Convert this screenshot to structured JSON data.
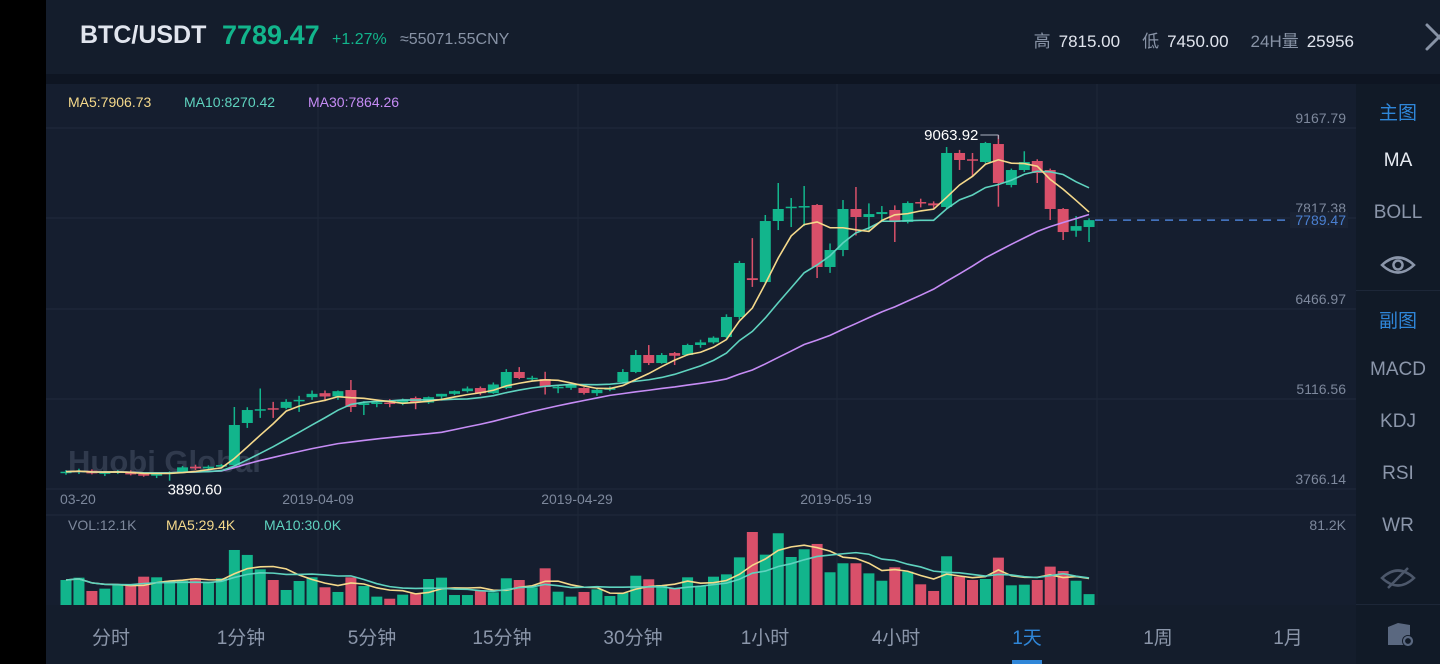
{
  "header": {
    "pair": "BTC/USDT",
    "price": "7789.47",
    "change": "+1.27%",
    "cny": "≈55071.55CNY",
    "high_label": "高",
    "high": "7815.00",
    "low_label": "低",
    "low": "7450.00",
    "vol_label": "24H量",
    "vol": "25956",
    "close_icon": "close-x-icon"
  },
  "legend": {
    "ma5": "MA5:7906.73",
    "ma10": "MA10:8270.42",
    "ma30": "MA30:7864.26",
    "vol": "VOL:12.1K",
    "vol_ma5": "MA5:29.4K",
    "vol_ma10": "MA10:30.0K"
  },
  "colors": {
    "up": "#12b58c",
    "down": "#d9506a",
    "ma5": "#f5d98b",
    "ma10": "#5fd3bf",
    "ma30": "#c68cf5",
    "accent": "#2f86d8",
    "last_price_line": "#4a7fd0"
  },
  "watermark": "Huobi Global",
  "sidebar": {
    "main_title": "主图",
    "ma": "MA",
    "boll": "BOLL",
    "main_eye_icon": "eye-icon",
    "sub_title": "副图",
    "macd": "MACD",
    "kdj": "KDJ",
    "rsi": "RSI",
    "wr": "WR",
    "sub_eye_icon": "eye-slash-icon",
    "settings_icon": "settings-icon"
  },
  "bottom_tabs": [
    {
      "label": "分时"
    },
    {
      "label": "1分钟"
    },
    {
      "label": "5分钟"
    },
    {
      "label": "15分钟"
    },
    {
      "label": "30分钟"
    },
    {
      "label": "1小时"
    },
    {
      "label": "4小时"
    },
    {
      "label": "1天",
      "active": true
    },
    {
      "label": "1周"
    },
    {
      "label": "1月"
    }
  ],
  "chart_data": {
    "type": "candlestick",
    "y_ticks": [
      "9167.79",
      "7817.38",
      "6466.97",
      "5116.56",
      "3766.14"
    ],
    "ylim": [
      3766.14,
      9167.79
    ],
    "x_tick_labels": [
      {
        "index": 0,
        "label": "03-20"
      },
      {
        "index": 20,
        "label": "2019-04-09"
      },
      {
        "index": 40,
        "label": "2019-04-29"
      },
      {
        "index": 60,
        "label": "2019-05-19"
      }
    ],
    "high_marker": "9063.92",
    "low_marker": "3890.60",
    "last_price": "7789.47",
    "vol_max_label": "81.2K",
    "vol_max": 81.2,
    "ohlc": [
      [
        4010,
        4050,
        3980,
        4025
      ],
      [
        4025,
        4070,
        3990,
        4040
      ],
      [
        4040,
        4060,
        3985,
        4000
      ],
      [
        4000,
        4035,
        3960,
        4015
      ],
      [
        4015,
        4050,
        3990,
        4030
      ],
      [
        4030,
        4045,
        3970,
        3985
      ],
      [
        3990,
        4010,
        3950,
        3965
      ],
      [
        3965,
        4010,
        3930,
        3995
      ],
      [
        3995,
        4030,
        3890.6,
        4020
      ],
      [
        4020,
        4110,
        4005,
        4090
      ],
      [
        4100,
        4130,
        4050,
        4075
      ],
      [
        4075,
        4120,
        4060,
        4100
      ],
      [
        4100,
        4140,
        4080,
        4125
      ],
      [
        4125,
        4993,
        4110,
        4724
      ],
      [
        4754,
        4990,
        4680,
        4948
      ],
      [
        4940,
        5270,
        4830,
        4960
      ],
      [
        4975,
        5070,
        4830,
        4955
      ],
      [
        4980,
        5110,
        4960,
        5070
      ],
      [
        5080,
        5160,
        4920,
        5100
      ],
      [
        5140,
        5240,
        5100,
        5190
      ],
      [
        5200,
        5240,
        5080,
        5150
      ],
      [
        5150,
        5240,
        5100,
        5230
      ],
      [
        5247,
        5397,
        4918,
        4993
      ],
      [
        5023,
        5080,
        4873,
        5050
      ],
      [
        5050,
        5100,
        4990,
        5060
      ],
      [
        5060,
        5110,
        4990,
        5040
      ],
      [
        5060,
        5120,
        5020,
        5100
      ],
      [
        5128,
        5150,
        4960,
        5060
      ],
      [
        5060,
        5150,
        5040,
        5140
      ],
      [
        5150,
        5190,
        5110,
        5190
      ],
      [
        5190,
        5240,
        5170,
        5230
      ],
      [
        5230,
        5300,
        5210,
        5270
      ],
      [
        5277,
        5300,
        5170,
        5200
      ],
      [
        5200,
        5360,
        5190,
        5330
      ],
      [
        5277,
        5560,
        5260,
        5517
      ],
      [
        5517,
        5590,
        5410,
        5427
      ],
      [
        5420,
        5460,
        5380,
        5430
      ],
      [
        5412,
        5520,
        5180,
        5292
      ],
      [
        5290,
        5320,
        5200,
        5295
      ],
      [
        5280,
        5330,
        5250,
        5320
      ],
      [
        5277,
        5290,
        5180,
        5203
      ],
      [
        5200,
        5270,
        5160,
        5250
      ],
      [
        5250,
        5300,
        5230,
        5280
      ],
      [
        5367,
        5560,
        5350,
        5517
      ],
      [
        5517,
        5846,
        5500,
        5771
      ],
      [
        5771,
        5920,
        5621,
        5651
      ],
      [
        5651,
        5800,
        5640,
        5771
      ],
      [
        5800,
        5816,
        5621,
        5760
      ],
      [
        5771,
        5940,
        5760,
        5921
      ],
      [
        5921,
        6000,
        5880,
        5960
      ],
      [
        5960,
        6050,
        5940,
        6030
      ],
      [
        6040,
        6380,
        6020,
        6340
      ],
      [
        6340,
        7180,
        6300,
        7148
      ],
      [
        6920,
        7520,
        6790,
        6893
      ],
      [
        6863,
        7866,
        6840,
        7776
      ],
      [
        7776,
        8345,
        7641,
        7956
      ],
      [
        7970,
        8120,
        7686,
        7990
      ],
      [
        7990,
        8300,
        7700,
        8000
      ],
      [
        8016,
        8030,
        6923,
        7088
      ],
      [
        7088,
        7440,
        7000,
        7342
      ],
      [
        7342,
        8090,
        7250,
        7956
      ],
      [
        7956,
        8285,
        7560,
        7836
      ],
      [
        7836,
        8040,
        7620,
        7880
      ],
      [
        7880,
        8000,
        7760,
        7910
      ],
      [
        7941,
        8010,
        7462,
        7762
      ],
      [
        7762,
        8070,
        7740,
        8045
      ],
      [
        8060,
        8110,
        7980,
        8040
      ],
      [
        8040,
        8070,
        7960,
        8010
      ],
      [
        7986,
        8883,
        7960,
        8794
      ],
      [
        8794,
        8840,
        8540,
        8689
      ],
      [
        8700,
        8794,
        8435,
        8690
      ],
      [
        8659,
        8960,
        8640,
        8943
      ],
      [
        8928,
        9063.92,
        7990,
        8345
      ],
      [
        8315,
        8560,
        8280,
        8539
      ],
      [
        8539,
        8820,
        8510,
        8659
      ],
      [
        8674,
        8700,
        8345,
        8494
      ],
      [
        8539,
        8560,
        7791,
        7956
      ],
      [
        7956,
        7970,
        7492,
        7611
      ],
      [
        7630,
        7850,
        7540,
        7700
      ],
      [
        7686,
        7815,
        7462,
        7789.47
      ]
    ],
    "volume_k": [
      27.8,
      30.4,
      15.6,
      18.2,
      21.9,
      21.9,
      31.5,
      30.8,
      27,
      27,
      29.7,
      26,
      29.7,
      61.2,
      55.7,
      39.7,
      27.8,
      16.7,
      26.7,
      30.8,
      19.7,
      14.5,
      30.8,
      21.1,
      9.3,
      7,
      11.5,
      13,
      28.9,
      30.4,
      11.1,
      11.1,
      15.6,
      14.1,
      29.7,
      27.8,
      19.7,
      40.8,
      14.8,
      9.3,
      14.5,
      17.4,
      10,
      13.7,
      32.6,
      28.6,
      22.3,
      18.6,
      30.8,
      21.1,
      31.5,
      34.1,
      53,
      81.2,
      56,
      79.8,
      53.4,
      62,
      67.9,
      36.4,
      46.4,
      46.4,
      35.2,
      27,
      41.9,
      37.1,
      23,
      15.6,
      54.2,
      31.5,
      27.8,
      28.9,
      52.7,
      21.9,
      22.6,
      27.8,
      42.7,
      37.8,
      27,
      12.1
    ]
  }
}
